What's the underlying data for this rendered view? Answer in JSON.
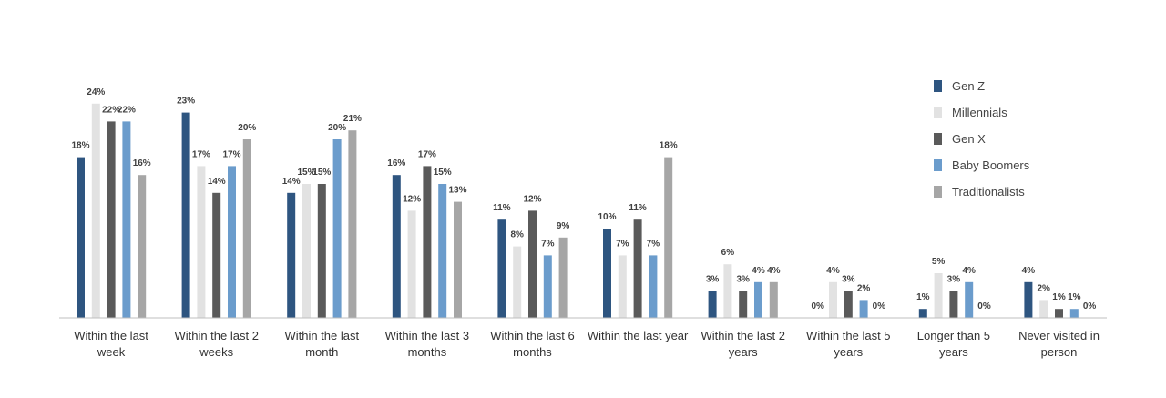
{
  "chart_data": {
    "type": "bar",
    "title": "",
    "xlabel": "",
    "ylabel": "",
    "ylim": [
      0,
      24
    ],
    "grid": false,
    "legend_position": "top-right",
    "value_suffix": "%",
    "categories": [
      [
        "Within the last",
        "week"
      ],
      [
        "Within the last 2",
        "weeks"
      ],
      [
        "Within the last",
        "month"
      ],
      [
        "Within the last 3",
        "months"
      ],
      [
        "Within the last 6",
        "months"
      ],
      [
        "Within the last year"
      ],
      [
        "Within the last 2",
        "years"
      ],
      [
        "Within the last 5",
        "years"
      ],
      [
        "Longer than 5",
        "years"
      ],
      [
        "Never visited in",
        "person"
      ]
    ],
    "series": [
      {
        "name": "Gen Z",
        "color": "#2e5580",
        "values": [
          18,
          23,
          14,
          16,
          11,
          10,
          3,
          0,
          1,
          4
        ]
      },
      {
        "name": "Millennials",
        "color": "#e2e2e2",
        "values": [
          24,
          17,
          15,
          12,
          8,
          7,
          6,
          4,
          5,
          2
        ]
      },
      {
        "name": "Gen X",
        "color": "#5a5a5a",
        "values": [
          22,
          14,
          15,
          17,
          12,
          11,
          3,
          3,
          3,
          1
        ]
      },
      {
        "name": "Baby Boomers",
        "color": "#6b9ccc",
        "values": [
          22,
          17,
          20,
          15,
          7,
          7,
          4,
          2,
          4,
          1
        ]
      },
      {
        "name": "Traditionalists",
        "color": "#a6a6a6",
        "values": [
          16,
          20,
          21,
          13,
          9,
          18,
          4,
          0,
          0,
          0
        ]
      }
    ]
  }
}
